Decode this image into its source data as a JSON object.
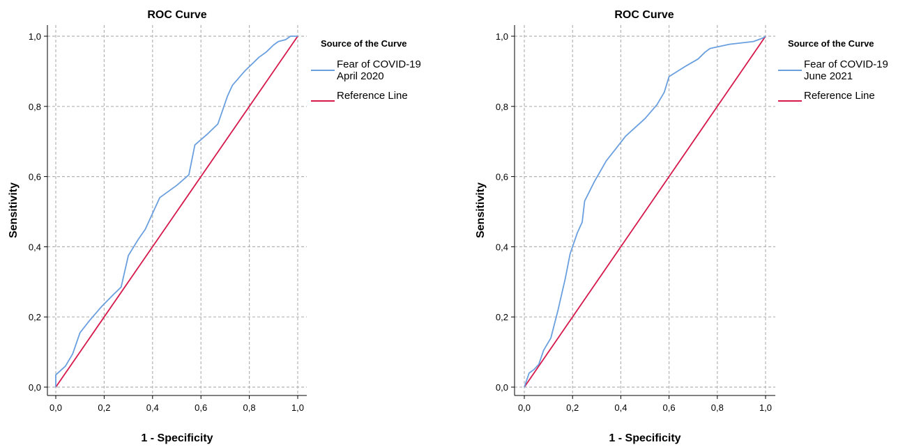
{
  "chart_data": [
    {
      "type": "line",
      "title": "ROC Curve",
      "xlabel": "1 - Specificity",
      "ylabel": "Sensitivity",
      "xlim": [
        0,
        1
      ],
      "ylim": [
        0,
        1
      ],
      "x_ticks": [
        "0,0",
        "0,2",
        "0,4",
        "0,6",
        "0,8",
        "1,0"
      ],
      "y_ticks": [
        "0,0",
        "0,2",
        "0,4",
        "0,6",
        "0,8",
        "1,0"
      ],
      "grid": true,
      "legend_title": "Source of the Curve",
      "legend_placement": "right",
      "series": [
        {
          "name": "Fear of COVID-19 April 2020",
          "legend_lines": [
            "Fear of COVID-19",
            "April 2020"
          ],
          "color": "#6a9fdf",
          "points": [
            [
              0,
              0
            ],
            [
              0,
              0.035
            ],
            [
              0.04,
              0.06
            ],
            [
              0.07,
              0.095
            ],
            [
              0.1,
              0.155
            ],
            [
              0.14,
              0.19
            ],
            [
              0.19,
              0.23
            ],
            [
              0.24,
              0.265
            ],
            [
              0.27,
              0.285
            ],
            [
              0.3,
              0.375
            ],
            [
              0.34,
              0.42
            ],
            [
              0.37,
              0.45
            ],
            [
              0.43,
              0.54
            ],
            [
              0.5,
              0.575
            ],
            [
              0.55,
              0.605
            ],
            [
              0.575,
              0.69
            ],
            [
              0.625,
              0.72
            ],
            [
              0.67,
              0.75
            ],
            [
              0.71,
              0.83
            ],
            [
              0.73,
              0.86
            ],
            [
              0.78,
              0.9
            ],
            [
              0.84,
              0.94
            ],
            [
              0.87,
              0.955
            ],
            [
              0.9,
              0.975
            ],
            [
              0.92,
              0.985
            ],
            [
              0.95,
              0.99
            ],
            [
              0.97,
              1.0
            ],
            [
              1,
              1
            ]
          ]
        },
        {
          "name": "Reference Line",
          "legend_lines": [
            "Reference Line"
          ],
          "color": "#d6184a",
          "points": [
            [
              0,
              0
            ],
            [
              1,
              1
            ]
          ]
        }
      ]
    },
    {
      "type": "line",
      "title": "ROC Curve",
      "xlabel": "1 - Specificity",
      "ylabel": "Sensitivity",
      "xlim": [
        0,
        1
      ],
      "ylim": [
        0,
        1
      ],
      "x_ticks": [
        "0,0",
        "0,2",
        "0,4",
        "0,6",
        "0,8",
        "1,0"
      ],
      "y_ticks": [
        "0,0",
        "0,2",
        "0,4",
        "0,6",
        "0,8",
        "1,0"
      ],
      "grid": true,
      "legend_title": "Source of the Curve",
      "legend_placement": "right",
      "series": [
        {
          "name": "Fear of COVID-19 June 2021",
          "legend_lines": [
            "Fear of COVID-19",
            "June 2021"
          ],
          "color": "#6a9fdf",
          "points": [
            [
              0,
              0
            ],
            [
              0.02,
              0.04
            ],
            [
              0.04,
              0.05
            ],
            [
              0.06,
              0.065
            ],
            [
              0.08,
              0.105
            ],
            [
              0.11,
              0.14
            ],
            [
              0.14,
              0.22
            ],
            [
              0.17,
              0.31
            ],
            [
              0.19,
              0.38
            ],
            [
              0.22,
              0.44
            ],
            [
              0.24,
              0.47
            ],
            [
              0.25,
              0.53
            ],
            [
              0.29,
              0.585
            ],
            [
              0.34,
              0.645
            ],
            [
              0.38,
              0.68
            ],
            [
              0.42,
              0.715
            ],
            [
              0.5,
              0.765
            ],
            [
              0.55,
              0.805
            ],
            [
              0.58,
              0.84
            ],
            [
              0.6,
              0.885
            ],
            [
              0.67,
              0.915
            ],
            [
              0.72,
              0.935
            ],
            [
              0.75,
              0.955
            ],
            [
              0.77,
              0.965
            ],
            [
              0.85,
              0.977
            ],
            [
              0.95,
              0.985
            ],
            [
              0.99,
              0.995
            ],
            [
              1,
              1
            ]
          ]
        },
        {
          "name": "Reference Line",
          "legend_lines": [
            "Reference Line"
          ],
          "color": "#d6184a",
          "points": [
            [
              0,
              0
            ],
            [
              1,
              1
            ]
          ]
        }
      ]
    }
  ]
}
